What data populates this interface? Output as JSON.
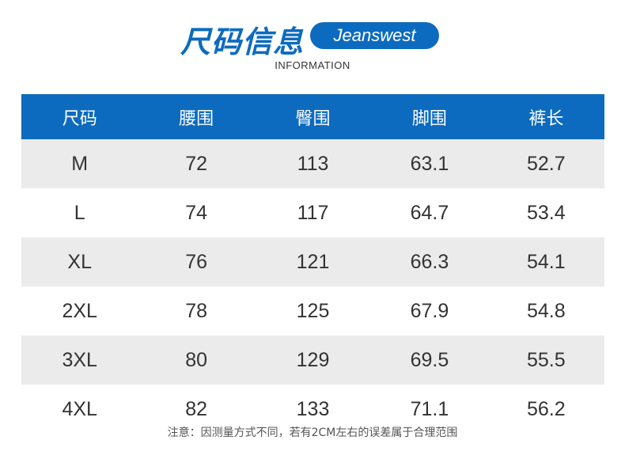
{
  "header": {
    "title": "尺码信息",
    "brand": "Jeanswest",
    "subtitle": "INFORMATION"
  },
  "table": {
    "columns": [
      "尺码",
      "腰围",
      "臀围",
      "脚围",
      "裤长"
    ],
    "rows": [
      [
        "M",
        "72",
        "113",
        "63.1",
        "52.7"
      ],
      [
        "L",
        "74",
        "117",
        "64.7",
        "53.4"
      ],
      [
        "XL",
        "76",
        "121",
        "66.3",
        "54.1"
      ],
      [
        "2XL",
        "78",
        "125",
        "67.9",
        "54.8"
      ],
      [
        "3XL",
        "80",
        "129",
        "69.5",
        "55.5"
      ],
      [
        "4XL",
        "82",
        "133",
        "71.1",
        "56.2"
      ]
    ]
  },
  "note": "注意：因测量方式不同，若有2CM左右的误差属于合理范围",
  "colors": {
    "brand_blue": "#0d6bbf",
    "row_shade": "#ebebeb"
  }
}
